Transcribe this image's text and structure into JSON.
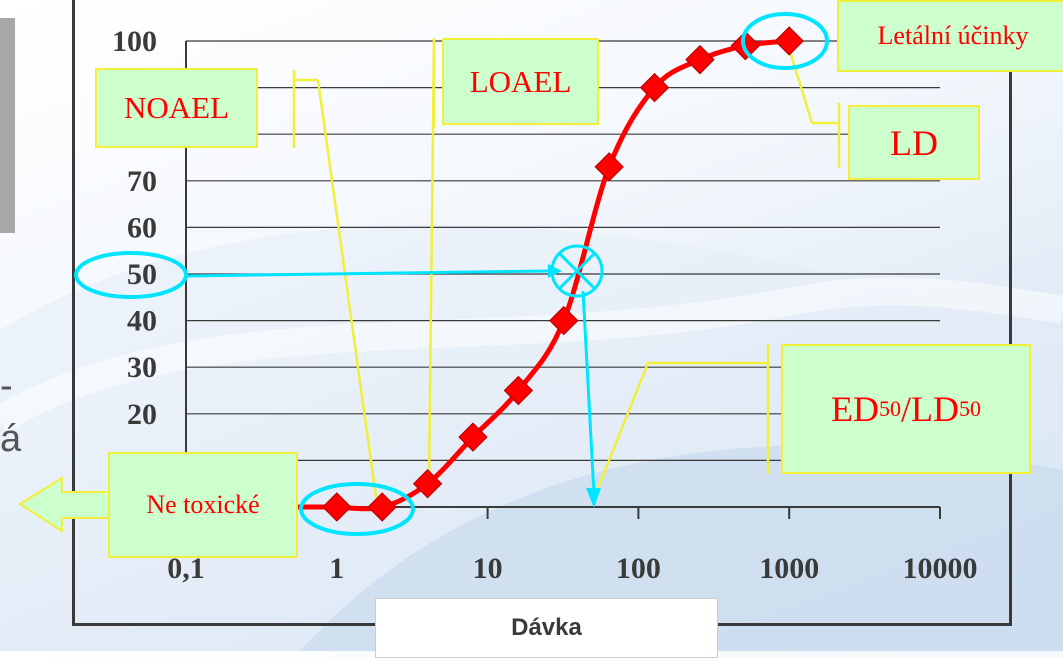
{
  "side_text": {
    "letter_1": "-",
    "letter_2": "á"
  },
  "colors": {
    "curve": "#ff0000",
    "marker": "#ff0000",
    "annotation": "#00e5ff",
    "leader": "#f2ef3a",
    "callout_fill": "#ccffcc",
    "callout_text": "#ff0000",
    "tick_text": "#3a3a3a"
  },
  "callouts": {
    "noael": "NOAEL",
    "loael": "LOAEL",
    "lethal": "Letální účinky",
    "ld": "LD",
    "ed_main": "ED",
    "ed_sub": "50",
    "ed_sep": "/LD",
    "ld_sub": "50",
    "non_toxic": "Ne toxické"
  },
  "chart_data": {
    "type": "line",
    "x_scale": "log",
    "xlabel": "Dávka",
    "ylabel": "",
    "xlim": [
      0.1,
      10000
    ],
    "ylim": [
      0,
      100
    ],
    "x_tick_labels": [
      "0,1",
      "1",
      "10",
      "100",
      "1000",
      "10000"
    ],
    "y_tick_labels": [
      "100",
      "70",
      "60",
      "50",
      "40",
      "30",
      "20"
    ],
    "grid": true,
    "series": [
      {
        "x": [
          1,
          2,
          4,
          8,
          16,
          32,
          64,
          128,
          256,
          512,
          1000
        ],
        "y": [
          0,
          0,
          5,
          15,
          25,
          40,
          73,
          90,
          96,
          99,
          100
        ]
      }
    ],
    "annotations": [
      "ED50 crossing at y = 50",
      "marker circles at y = 50 axis label, lowest doses and highest dose"
    ]
  }
}
